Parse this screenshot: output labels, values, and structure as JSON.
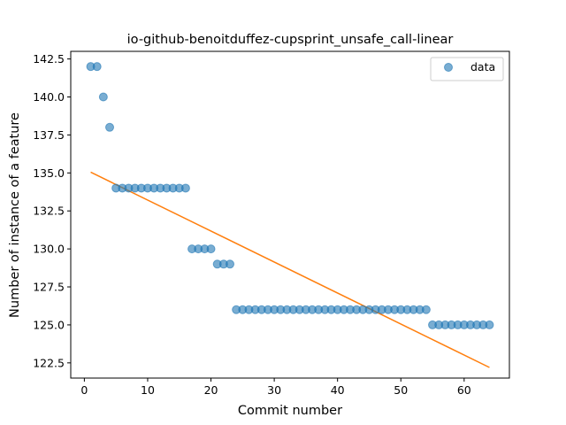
{
  "chart_data": {
    "type": "scatter",
    "title": "io-github-benoitduffez-cupsprint_unsafe_call-linear",
    "xlabel": "Commit number",
    "ylabel": "Number of instance of a feature",
    "xlim": [
      -2.15,
      67.15
    ],
    "ylim": [
      121.5,
      143.0
    ],
    "xticks": [
      0,
      10,
      20,
      30,
      40,
      50,
      60
    ],
    "yticks": [
      122.5,
      125.0,
      127.5,
      130.0,
      132.5,
      135.0,
      137.5,
      140.0,
      142.5
    ],
    "ytick_labels": [
      "122.5",
      "125.0",
      "127.5",
      "130.0",
      "132.5",
      "135.0",
      "137.5",
      "140.0",
      "142.5"
    ],
    "grid": false,
    "legend": {
      "position": "top-right",
      "entries": [
        "data"
      ]
    },
    "series": [
      {
        "name": "data",
        "type": "scatter",
        "color": "#1f77b4",
        "x": [
          1,
          2,
          3,
          4,
          5,
          6,
          7,
          8,
          9,
          10,
          11,
          12,
          13,
          14,
          15,
          16,
          17,
          18,
          19,
          20,
          21,
          22,
          23,
          24,
          25,
          26,
          27,
          28,
          29,
          30,
          31,
          32,
          33,
          34,
          35,
          36,
          37,
          38,
          39,
          40,
          41,
          42,
          43,
          44,
          45,
          46,
          47,
          48,
          49,
          50,
          51,
          52,
          53,
          54,
          55,
          56,
          57,
          58,
          59,
          60,
          61,
          62,
          63,
          64
        ],
        "y": [
          142,
          142,
          140,
          138,
          134,
          134,
          134,
          134,
          134,
          134,
          134,
          134,
          134,
          134,
          134,
          134,
          130,
          130,
          130,
          130,
          129,
          129,
          129,
          126,
          126,
          126,
          126,
          126,
          126,
          126,
          126,
          126,
          126,
          126,
          126,
          126,
          126,
          126,
          126,
          126,
          126,
          126,
          126,
          126,
          126,
          126,
          126,
          126,
          126,
          126,
          126,
          126,
          126,
          126,
          125,
          125,
          125,
          125,
          125,
          125,
          125,
          125,
          125,
          125
        ]
      },
      {
        "type": "line",
        "color": "#ff7f0e",
        "x": [
          1,
          64
        ],
        "y": [
          135.05,
          122.2
        ]
      }
    ]
  }
}
